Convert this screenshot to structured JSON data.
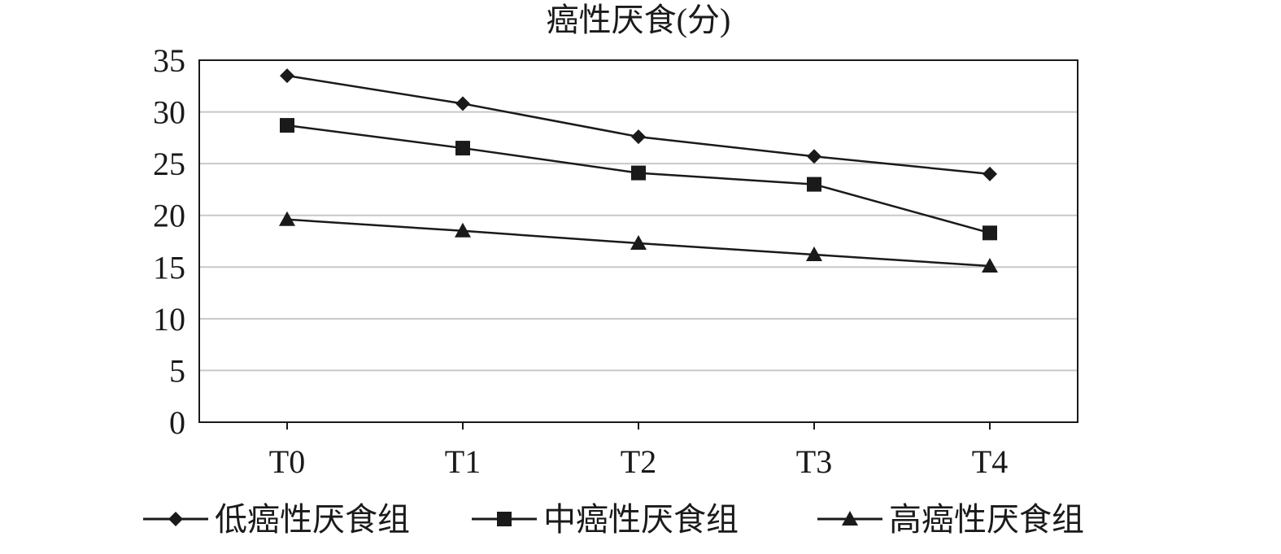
{
  "chart_data": {
    "type": "line",
    "title": "癌性厌食(分)",
    "xlabel": "",
    "ylabel": "",
    "categories": [
      "T0",
      "T1",
      "T2",
      "T3",
      "T4"
    ],
    "ylim": [
      0,
      35
    ],
    "yticks": [
      0,
      5,
      10,
      15,
      20,
      25,
      30,
      35
    ],
    "grid": true,
    "legend_position": "bottom",
    "series": [
      {
        "name": "低癌性厌食组",
        "marker": "diamond",
        "values": [
          33.5,
          30.8,
          27.6,
          25.7,
          24.0
        ]
      },
      {
        "name": "中癌性厌食组",
        "marker": "square",
        "values": [
          28.7,
          26.5,
          24.1,
          23.0,
          18.3
        ]
      },
      {
        "name": "高癌性厌食组",
        "marker": "triangle",
        "values": [
          19.6,
          18.5,
          17.3,
          16.2,
          15.1
        ]
      }
    ],
    "colors": {
      "line": "#1a1a1a",
      "grid": "#c8c8c8",
      "axis": "#1a1a1a"
    }
  }
}
